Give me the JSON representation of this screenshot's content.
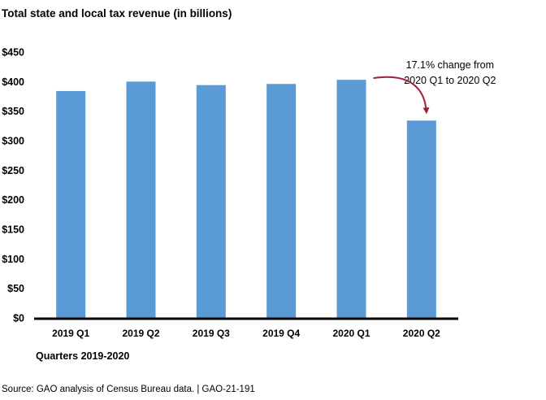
{
  "colors": {
    "bar": "#5b9bd5",
    "axis": "#000000",
    "arrow": "#a0203a"
  },
  "chart_data": {
    "type": "bar",
    "title": "Total state and local tax revenue (in billions)",
    "xlabel": "Quarters 2019-2020",
    "ylabel": "",
    "categories": [
      "2019 Q1",
      "2019 Q2",
      "2019 Q3",
      "2019 Q4",
      "2020 Q1",
      "2020 Q2"
    ],
    "values": [
      384,
      400,
      394,
      396,
      403,
      334
    ],
    "ylim": [
      0,
      450
    ],
    "yticks": [
      {
        "value": 0,
        "label": "$0"
      },
      {
        "value": 50,
        "label": "$50"
      },
      {
        "value": 100,
        "label": "$100"
      },
      {
        "value": 150,
        "label": "$150"
      },
      {
        "value": 200,
        "label": "$200"
      },
      {
        "value": 250,
        "label": "$250"
      },
      {
        "value": 300,
        "label": "$300"
      },
      {
        "value": 350,
        "label": "$350"
      },
      {
        "value": 400,
        "label": "$400"
      },
      {
        "value": 450,
        "label": "$450"
      }
    ],
    "grid": false,
    "annotation": {
      "lines": [
        "17.1% change from",
        "2020 Q1 to 2020 Q2"
      ],
      "from_category": "2020 Q1",
      "to_category": "2020 Q2"
    }
  },
  "source": "Source: GAO analysis of Census Bureau data.  |  GAO-21-191"
}
